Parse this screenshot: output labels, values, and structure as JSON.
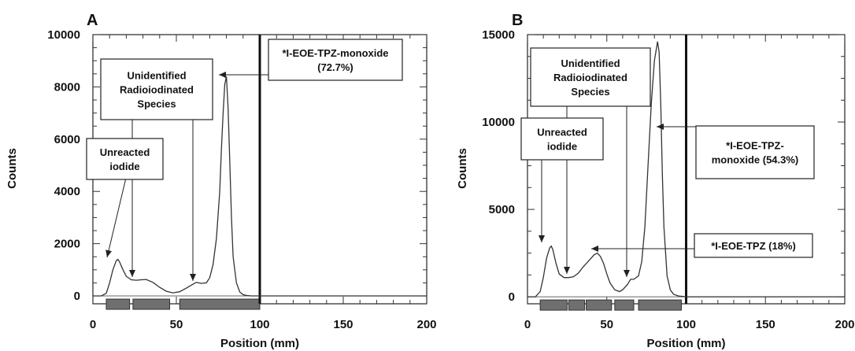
{
  "chart_data": [
    {
      "panel": "A",
      "type": "line",
      "xlabel": "Position (mm)",
      "ylabel": "Counts",
      "xlim": [
        0,
        200
      ],
      "ylim": [
        -300,
        10000
      ],
      "x_ticks": [
        0,
        50,
        100,
        150,
        200
      ],
      "y_ticks": [
        0,
        2000,
        4000,
        6000,
        8000,
        10000
      ],
      "grid": false,
      "divider_x": 100,
      "lane_segments": [
        [
          8,
          22
        ],
        [
          24,
          46
        ],
        [
          52,
          100
        ]
      ],
      "series": [
        {
          "x": [
            0,
            5,
            8,
            10,
            12,
            14,
            15,
            16,
            18,
            20,
            23,
            26,
            29,
            32,
            36,
            40,
            44,
            48,
            52,
            56,
            60,
            62,
            65,
            68,
            70,
            72,
            74,
            76,
            77,
            78,
            79,
            80,
            81,
            82,
            83,
            84,
            86,
            88,
            90,
            92,
            95,
            100,
            105,
            110,
            120,
            130,
            140,
            150,
            160,
            170,
            180,
            190,
            200
          ],
          "values": [
            0,
            0,
            100,
            500,
            1000,
            1350,
            1400,
            1300,
            1000,
            750,
            620,
            600,
            620,
            630,
            520,
            330,
            180,
            120,
            160,
            300,
            450,
            520,
            480,
            500,
            700,
            1200,
            2200,
            4000,
            5600,
            7000,
            8100,
            8400,
            7200,
            5200,
            3000,
            1500,
            500,
            150,
            50,
            20,
            0,
            0,
            0,
            0,
            0,
            0,
            0,
            0,
            0,
            0,
            0,
            0,
            0
          ]
        }
      ],
      "annotations": [
        {
          "text_lines": [
            "*I-EOE-TPZ-monoxide",
            "(72.7%)"
          ],
          "arrow_to": [
            80,
            8400
          ]
        },
        {
          "text_lines": [
            "Unidentified",
            "Radioiodinated",
            "Species"
          ],
          "arrow_to": [
            [
              30,
              600
            ],
            [
              65,
              480
            ]
          ]
        },
        {
          "text_lines": [
            "Unreacted",
            "iodide"
          ],
          "arrow_to": [
            15,
            1400
          ]
        }
      ]
    },
    {
      "panel": "B",
      "type": "line",
      "xlabel": "Position (mm)",
      "ylabel": "Counts",
      "xlim": [
        0,
        200
      ],
      "ylim": [
        -400,
        15000
      ],
      "x_ticks": [
        0,
        50,
        100,
        150,
        200
      ],
      "y_ticks": [
        0,
        5000,
        10000,
        15000
      ],
      "grid": false,
      "divider_x": 100,
      "lane_segments": [
        [
          8,
          25
        ],
        [
          26,
          36
        ],
        [
          37,
          53
        ],
        [
          55,
          67
        ],
        [
          70,
          97
        ]
      ],
      "series": [
        {
          "x": [
            0,
            5,
            8,
            10,
            12,
            14,
            15,
            16,
            18,
            20,
            23,
            26,
            29,
            32,
            35,
            38,
            40,
            42,
            44,
            46,
            48,
            50,
            52,
            55,
            58,
            60,
            63,
            65,
            67,
            70,
            72,
            74,
            76,
            78,
            80,
            82,
            83,
            84,
            85,
            86,
            88,
            90,
            92,
            95,
            100,
            110,
            120,
            140,
            160,
            180,
            200
          ],
          "values": [
            0,
            0,
            300,
            1100,
            2200,
            2800,
            2900,
            2700,
            1900,
            1300,
            1100,
            1100,
            1150,
            1350,
            1700,
            2000,
            2200,
            2400,
            2500,
            2300,
            1900,
            1300,
            800,
            400,
            300,
            400,
            700,
            1000,
            1000,
            1200,
            2000,
            4000,
            7500,
            11000,
            13500,
            14600,
            14000,
            11000,
            7000,
            4000,
            1200,
            400,
            150,
            50,
            0,
            0,
            0,
            0,
            0,
            0,
            0
          ]
        }
      ],
      "annotations": [
        {
          "text_lines": [
            "*I-EOE-TPZ-",
            "monoxide (54.3%)"
          ],
          "arrow_to": [
            84,
            11200
          ]
        },
        {
          "text_lines": [
            "Unidentified",
            "Radioiodinated",
            "Species"
          ],
          "arrow_to": [
            [
              30,
              1150
            ],
            [
              66,
              1000
            ]
          ]
        },
        {
          "text_lines": [
            "Unreacted",
            "iodide"
          ],
          "arrow_to": [
            15,
            2900
          ]
        },
        {
          "text_lines": [
            "*I-EOE-TPZ (18%)"
          ],
          "arrow_to": [
            47,
            2500
          ]
        }
      ]
    }
  ]
}
